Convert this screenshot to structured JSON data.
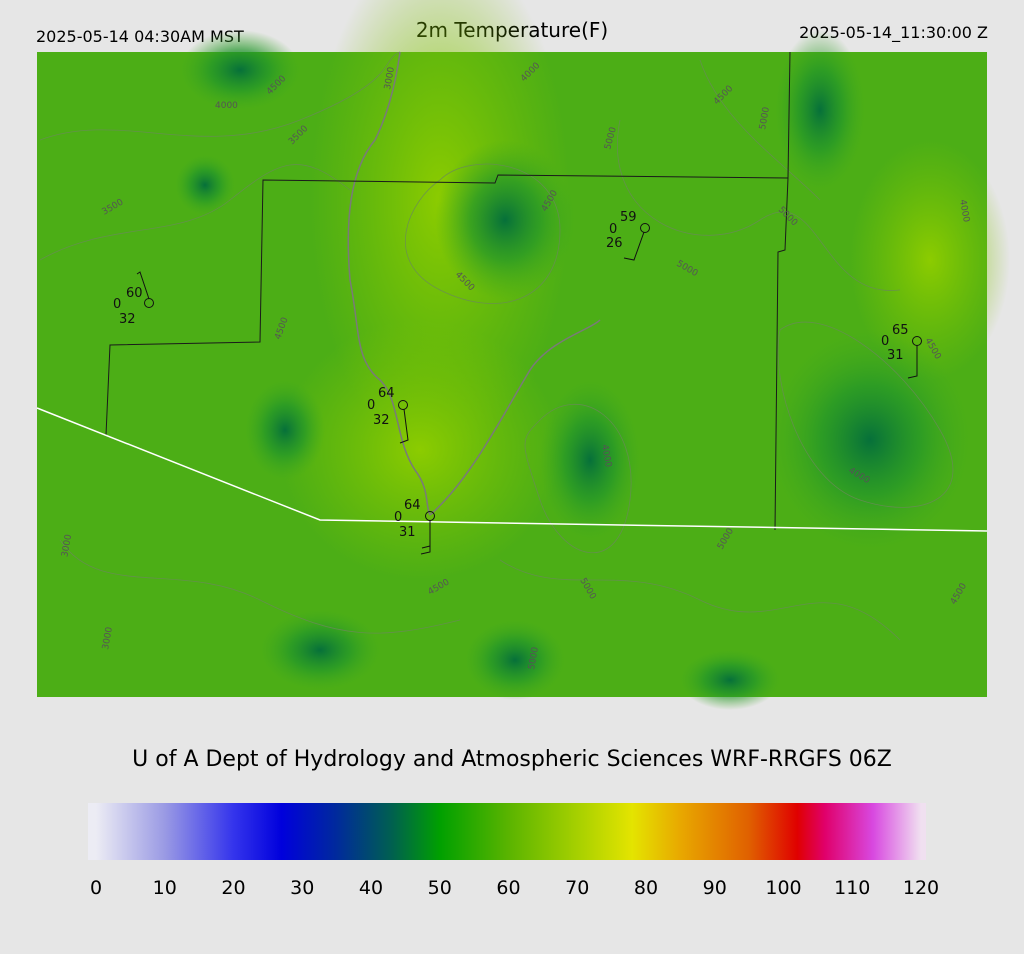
{
  "header": {
    "local_time": "2025-05-14 04:30AM MST",
    "title": "2m Temperature(F)",
    "utc_time": "2025-05-14_11:30:00 Z"
  },
  "stations": [
    {
      "temperature": "60",
      "cloud": "0",
      "dewpoint": "32"
    },
    {
      "temperature": "59",
      "cloud": "0",
      "dewpoint": "26"
    },
    {
      "temperature": "64",
      "cloud": "0",
      "dewpoint": "32"
    },
    {
      "temperature": "64",
      "cloud": "0",
      "dewpoint": "31"
    },
    {
      "temperature": "65",
      "cloud": "0",
      "dewpoint": "31"
    }
  ],
  "contour_labels": [
    "3000",
    "4000",
    "4500",
    "3500",
    "4000",
    "4500",
    "5000",
    "5000",
    "5000",
    "4500",
    "5000",
    "4500",
    "4000",
    "3500",
    "4500",
    "4500",
    "4000",
    "4000",
    "3000",
    "5000",
    "4500",
    "5000",
    "4500",
    "3000",
    "5000"
  ],
  "footer": "U of A Dept of Hydrology and Atmospheric Sciences WRF-RRGFS 06Z",
  "colorbar": {
    "lim": [
      0,
      120
    ],
    "ticks": [
      0,
      10,
      20,
      30,
      40,
      50,
      60,
      70,
      80,
      90,
      100,
      110,
      120
    ],
    "stops": [
      {
        "value": 0,
        "color": "#ececf4"
      },
      {
        "value": 10,
        "color": "#9a9ae4"
      },
      {
        "value": 20,
        "color": "#3434ec"
      },
      {
        "value": 27,
        "color": "#0000dc"
      },
      {
        "value": 35,
        "color": "#002a9c"
      },
      {
        "value": 43,
        "color": "#006050"
      },
      {
        "value": 50,
        "color": "#00a000"
      },
      {
        "value": 60,
        "color": "#5ab400"
      },
      {
        "value": 70,
        "color": "#a6d000"
      },
      {
        "value": 78,
        "color": "#e4e400"
      },
      {
        "value": 85,
        "color": "#e8a800"
      },
      {
        "value": 95,
        "color": "#e06000"
      },
      {
        "value": 102,
        "color": "#e00000"
      },
      {
        "value": 106,
        "color": "#e0006a"
      },
      {
        "value": 113,
        "color": "#d848e0"
      },
      {
        "value": 120,
        "color": "#f0e0f0"
      }
    ]
  }
}
